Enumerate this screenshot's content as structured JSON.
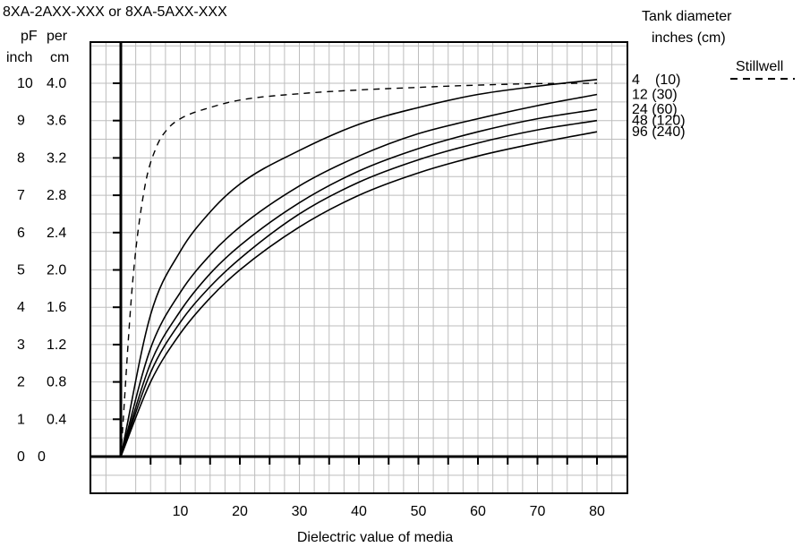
{
  "chart_data": {
    "type": "line",
    "title": "8XA-2AXX-XXX or 8XA-5AXX-XXX",
    "xlabel": "Dielectric value of media",
    "xlim": [
      0,
      80
    ],
    "x_ticks": [
      "10",
      "20",
      "30",
      "40",
      "50",
      "60",
      "70",
      "80"
    ],
    "ylim": [
      0,
      10
    ],
    "y_axis_inch": {
      "header": [
        "pF",
        "inch"
      ],
      "ticks": [
        "0",
        "1",
        "2",
        "3",
        "4",
        "5",
        "6",
        "7",
        "8",
        "9",
        "10"
      ]
    },
    "y_axis_cm": {
      "header": [
        "per",
        "cm"
      ],
      "ticks": [
        "0",
        "0.4",
        "0.8",
        "1.2",
        "1.6",
        "2.0",
        "2.4",
        "2.8",
        "3.2",
        "3.6",
        "4.0"
      ]
    },
    "legend_title": [
      "Tank diameter",
      "inches (cm)"
    ],
    "stillwell_label": "Stillwell",
    "grid": true,
    "series": [
      {
        "name": "Stillwell",
        "style": "dashed",
        "x": [
          0,
          2,
          4,
          6,
          8,
          10,
          15,
          20,
          30,
          40,
          50,
          60,
          70,
          80
        ],
        "y": [
          0,
          4.7,
          7.2,
          8.3,
          8.8,
          9.05,
          9.35,
          9.55,
          9.72,
          9.82,
          9.89,
          9.95,
          9.99,
          10.0
        ]
      },
      {
        "name": "4 (10)",
        "label": [
          "4",
          "(10)"
        ],
        "style": "solid",
        "x": [
          0,
          5,
          10,
          15,
          20,
          30,
          40,
          50,
          60,
          70,
          80
        ],
        "y": [
          0,
          3.8,
          5.5,
          6.55,
          7.3,
          8.2,
          8.9,
          9.35,
          9.7,
          9.92,
          10.1
        ]
      },
      {
        "name": "12 (30)",
        "label": [
          "12 (30)"
        ],
        "style": "solid",
        "x": [
          0,
          5,
          10,
          15,
          20,
          30,
          40,
          50,
          60,
          70,
          80
        ],
        "y": [
          0,
          2.9,
          4.4,
          5.4,
          6.15,
          7.25,
          8.05,
          8.65,
          9.05,
          9.4,
          9.7
        ]
      },
      {
        "name": "24 (60)",
        "label": [
          "24 (60)"
        ],
        "style": "solid",
        "x": [
          0,
          5,
          10,
          15,
          20,
          30,
          40,
          50,
          60,
          70,
          80
        ],
        "y": [
          0,
          2.5,
          3.9,
          4.9,
          5.65,
          6.8,
          7.65,
          8.25,
          8.7,
          9.05,
          9.3
        ]
      },
      {
        "name": "48 (120)",
        "label": [
          "48 (120)"
        ],
        "style": "solid",
        "x": [
          0,
          5,
          10,
          15,
          20,
          30,
          40,
          50,
          60,
          70,
          80
        ],
        "y": [
          0,
          2.25,
          3.6,
          4.55,
          5.3,
          6.5,
          7.35,
          7.95,
          8.4,
          8.75,
          9.0
        ]
      },
      {
        "name": "96 (240)",
        "label": [
          "96 (240)"
        ],
        "style": "solid",
        "x": [
          0,
          5,
          10,
          15,
          20,
          30,
          40,
          50,
          60,
          70,
          80
        ],
        "y": [
          0,
          2.0,
          3.3,
          4.25,
          5.0,
          6.15,
          7.0,
          7.6,
          8.05,
          8.4,
          8.7
        ]
      }
    ]
  }
}
